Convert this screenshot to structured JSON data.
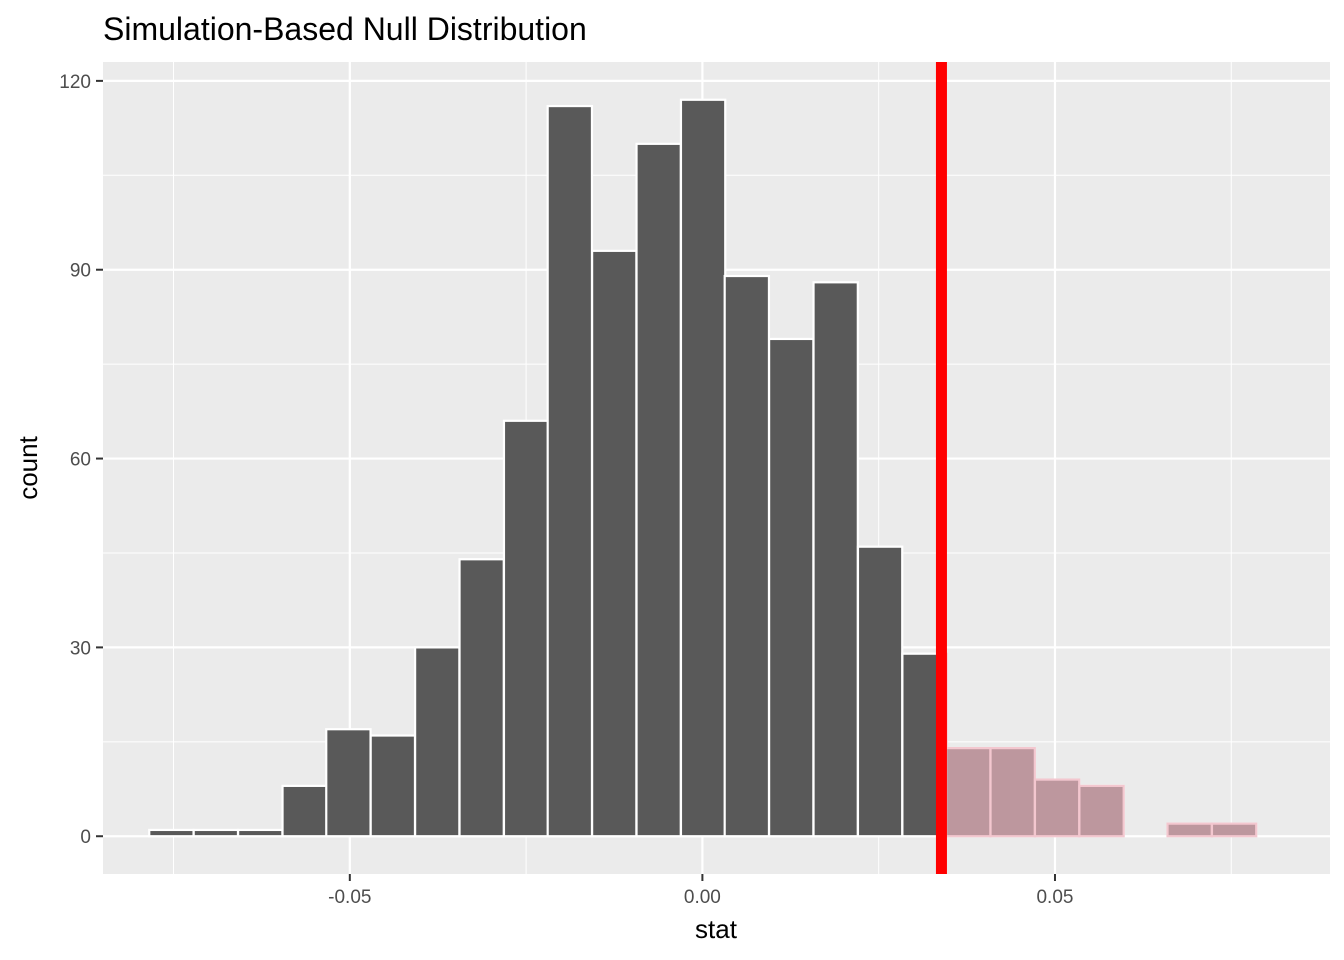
{
  "chart_data": {
    "type": "bar",
    "title": "Simulation-Based Null Distribution",
    "xlabel": "stat",
    "ylabel": "count",
    "xlim": [
      -0.085,
      0.089
    ],
    "ylim": [
      -6,
      123
    ],
    "x_ticks": [
      {
        "value": -0.05,
        "label": "-0.05"
      },
      {
        "value": 0.0,
        "label": "0.00"
      },
      {
        "value": 0.05,
        "label": "0.05"
      }
    ],
    "y_ticks": [
      {
        "value": 0,
        "label": "0"
      },
      {
        "value": 30,
        "label": "30"
      },
      {
        "value": 60,
        "label": "60"
      },
      {
        "value": 90,
        "label": "90"
      },
      {
        "value": 120,
        "label": "120"
      }
    ],
    "bin_width": 0.00628,
    "bins": [
      {
        "x": -0.0753,
        "count": 1,
        "shaded": false
      },
      {
        "x": -0.069,
        "count": 1,
        "shaded": false
      },
      {
        "x": -0.0627,
        "count": 1,
        "shaded": false
      },
      {
        "x": -0.0564,
        "count": 8,
        "shaded": false
      },
      {
        "x": -0.0502,
        "count": 17,
        "shaded": false
      },
      {
        "x": -0.0439,
        "count": 16,
        "shaded": false
      },
      {
        "x": -0.0376,
        "count": 30,
        "shaded": false
      },
      {
        "x": -0.0313,
        "count": 44,
        "shaded": false
      },
      {
        "x": -0.025,
        "count": 66,
        "shaded": false
      },
      {
        "x": -0.0188,
        "count": 116,
        "shaded": false
      },
      {
        "x": -0.0125,
        "count": 93,
        "shaded": false
      },
      {
        "x": -0.0062,
        "count": 110,
        "shaded": false
      },
      {
        "x": 0.0001,
        "count": 117,
        "shaded": false
      },
      {
        "x": 0.0063,
        "count": 89,
        "shaded": false
      },
      {
        "x": 0.0126,
        "count": 79,
        "shaded": false
      },
      {
        "x": 0.0189,
        "count": 88,
        "shaded": false
      },
      {
        "x": 0.0252,
        "count": 46,
        "shaded": false
      },
      {
        "x": 0.0315,
        "count": 29,
        "shaded": false
      },
      {
        "x": 0.0377,
        "count": 14,
        "shaded": true
      },
      {
        "x": 0.044,
        "count": 14,
        "shaded": true
      },
      {
        "x": 0.0503,
        "count": 9,
        "shaded": true
      },
      {
        "x": 0.0566,
        "count": 8,
        "shaded": true
      },
      {
        "x": 0.0629,
        "count": 0,
        "shaded": true
      },
      {
        "x": 0.0691,
        "count": 2,
        "shaded": true
      },
      {
        "x": 0.0754,
        "count": 2,
        "shaded": true
      }
    ],
    "observed_stat": 0.0339,
    "shade_direction": "right",
    "grid": true,
    "colors": {
      "panel_background": "#EBEBEB",
      "grid": "#FFFFFF",
      "bar_fill": "#595959",
      "bar_outline": "#FFFFFF",
      "shade_fill": "#BD979E",
      "shade_outline": "#F3C7CF",
      "observed_line": "#FF0000"
    }
  }
}
